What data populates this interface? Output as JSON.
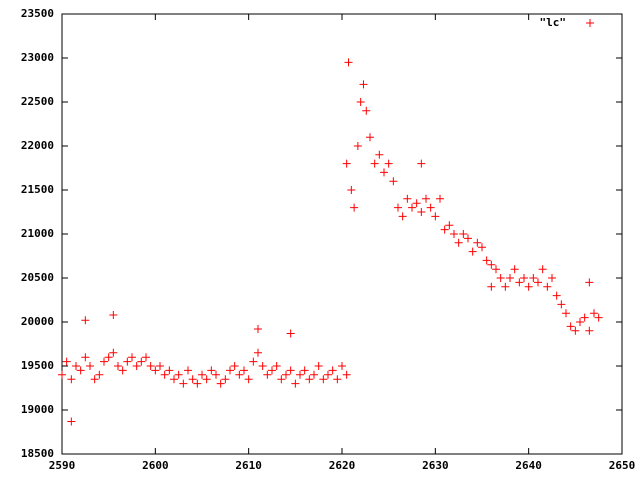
{
  "chart_data": {
    "type": "scatter",
    "xlim": [
      2590,
      2650
    ],
    "ylim": [
      18500,
      23500
    ],
    "xticks": [
      2590,
      2600,
      2610,
      2620,
      2630,
      2640,
      2650
    ],
    "yticks": [
      18500,
      19000,
      19500,
      20000,
      20500,
      21000,
      21500,
      22000,
      22500,
      23000,
      23500
    ],
    "legend": "top-right",
    "series": [
      {
        "name": "\"lc\"",
        "color": "#ff0000",
        "x": [
          2590,
          2590.5,
          2591,
          2591.5,
          2592,
          2592.5,
          2593,
          2593.5,
          2594,
          2594.5,
          2595,
          2595.5,
          2596,
          2596.5,
          2597,
          2597.5,
          2598,
          2598.5,
          2599,
          2599.5,
          2600,
          2600.5,
          2601,
          2601.5,
          2602,
          2602.5,
          2603,
          2603.5,
          2604,
          2604.5,
          2605,
          2605.5,
          2606,
          2606.5,
          2607,
          2607.5,
          2608,
          2608.5,
          2609,
          2609.5,
          2610,
          2610.5,
          2611,
          2611.5,
          2612,
          2612.5,
          2613,
          2613.5,
          2614,
          2614.5,
          2615,
          2615.5,
          2616,
          2616.5,
          2617,
          2617.5,
          2618,
          2618.5,
          2619,
          2619.5,
          2620,
          2620.5,
          2591,
          2592.5,
          2595.5,
          2614.5,
          2611,
          2620.5,
          2620.7,
          2621,
          2621.3,
          2621.7,
          2622,
          2622.3,
          2622.6,
          2623,
          2623.5,
          2624,
          2624.5,
          2625,
          2625.5,
          2626,
          2626.5,
          2627,
          2627.5,
          2628,
          2628.5,
          2629,
          2629.5,
          2630,
          2630.5,
          2631,
          2631.5,
          2632,
          2632.5,
          2633,
          2633.5,
          2634,
          2634.5,
          2635,
          2635.5,
          2636,
          2636.5,
          2637,
          2637.5,
          2638,
          2638.5,
          2639,
          2639.5,
          2640,
          2640.5,
          2641,
          2641.5,
          2642,
          2642.5,
          2643,
          2643.5,
          2644,
          2644.5,
          2645,
          2645.5,
          2646,
          2646.5,
          2647,
          2647.5,
          2628.5,
          2636,
          2646.5
        ],
        "values": [
          19400,
          19550,
          19350,
          19500,
          19450,
          19600,
          19500,
          19350,
          19400,
          19550,
          19600,
          19650,
          19500,
          19450,
          19550,
          19600,
          19500,
          19550,
          19600,
          19500,
          19450,
          19500,
          19400,
          19450,
          19350,
          19400,
          19300,
          19450,
          19350,
          19300,
          19400,
          19350,
          19450,
          19400,
          19300,
          19350,
          19450,
          19500,
          19400,
          19450,
          19350,
          19550,
          19650,
          19500,
          19400,
          19450,
          19500,
          19350,
          19400,
          19450,
          19300,
          19400,
          19450,
          19350,
          19400,
          19500,
          19350,
          19400,
          19450,
          19350,
          19500,
          19400,
          18870,
          20020,
          20080,
          19870,
          19920,
          21800,
          22950,
          21500,
          21300,
          22000,
          22500,
          22700,
          22400,
          22100,
          21800,
          21900,
          21700,
          21800,
          21600,
          21300,
          21200,
          21400,
          21300,
          21350,
          21250,
          21400,
          21300,
          21200,
          21400,
          21050,
          21100,
          21000,
          20900,
          21000,
          20950,
          20800,
          20900,
          20850,
          20700,
          20650,
          20600,
          20500,
          20400,
          20500,
          20600,
          20450,
          20500,
          20400,
          20500,
          20450,
          20600,
          20400,
          20500,
          20300,
          20200,
          20100,
          19950,
          19900,
          20000,
          20050,
          19900,
          20100,
          20050,
          21800,
          20400,
          20450
        ]
      }
    ]
  }
}
